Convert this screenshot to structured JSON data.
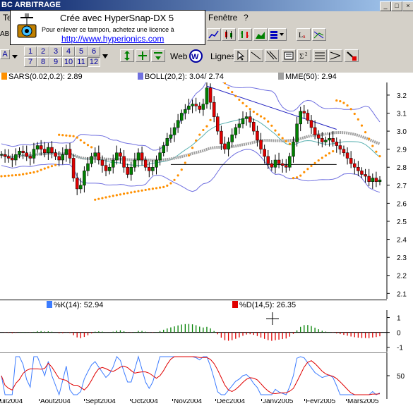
{
  "window": {
    "title": "BC ARBITRAGE",
    "controls": [
      "_",
      "□",
      "×"
    ]
  },
  "menu": {
    "items": [
      "Fenêtre",
      "?"
    ]
  },
  "stamp": {
    "line1": "Crée avec HyperSnap-DX 5",
    "line2": "Pour enlever ce tampon, achetez une licence à",
    "line3": "http://www.hyperionics.com"
  },
  "toolbar": {
    "left_field": "ABC",
    "left_field2": "Te",
    "a_button": "A",
    "number_buttons": [
      "1",
      "2",
      "3",
      "4",
      "5",
      "6",
      "7",
      "8",
      "9",
      "10",
      "11",
      "12"
    ],
    "active_number": "12",
    "web_label": "Web",
    "lignes_label": "Lignes"
  },
  "legends": {
    "sars": "SARS(0.02,0.2):  2.89",
    "boll": "BOLL(20,2):  3.04/  2.74",
    "mme": "MME(50):  2.94",
    "k": "%K(14):  52.94",
    "d": "%D(14,5):  26.35"
  },
  "colors": {
    "sars": "#ff9000",
    "boll": "#7070e0",
    "mme": "#a0a0a0",
    "k": "#3c7cff",
    "d": "#e00000",
    "up": "#008000",
    "down": "#e00000"
  },
  "chart_data": [
    {
      "type": "candlestick",
      "ylim": [
        2.07,
        3.27
      ],
      "yticks": [
        "3.2",
        "3.1",
        "3.0",
        "2.9",
        "2.8",
        "2.7",
        "2.6",
        "2.5",
        "2.4",
        "2.3",
        "2.2",
        "2.1"
      ],
      "xticks": [
        "uil2004",
        "Aout2004",
        "Sept2004",
        "Oct2004",
        "Nov2004",
        "Dec2004",
        "Janv2005",
        "Fevr2005",
        "Mars2005"
      ],
      "close": [
        2.87,
        2.86,
        2.85,
        2.84,
        2.87,
        2.89,
        2.88,
        2.86,
        2.85,
        2.9,
        2.92,
        2.9,
        2.88,
        2.91,
        2.88,
        2.86,
        2.84,
        2.87,
        2.9,
        2.85,
        2.74,
        2.68,
        2.7,
        2.78,
        2.82,
        2.86,
        2.88,
        2.84,
        2.81,
        2.78,
        2.8,
        2.84,
        2.88,
        2.86,
        2.8,
        2.76,
        2.8,
        2.84,
        2.88,
        2.84,
        2.8,
        2.78,
        2.8,
        2.84,
        2.88,
        2.92,
        2.96,
        2.98,
        3.02,
        3.06,
        3.1,
        3.12,
        3.14,
        3.15,
        3.14,
        3.12,
        3.15,
        3.24,
        3.16,
        3.08,
        3.0,
        2.93,
        2.9,
        2.94,
        2.98,
        3.02,
        3.04,
        3.07,
        3.08,
        3.05,
        3.0,
        2.95,
        2.9,
        2.86,
        2.82,
        2.8,
        2.84,
        2.82,
        2.81,
        2.8,
        2.86,
        2.94,
        3.04,
        3.11,
        3.1,
        3.06,
        3.02,
        2.98,
        2.96,
        2.94,
        2.95,
        2.96,
        2.94,
        2.92,
        2.9,
        2.88,
        2.85,
        2.82,
        2.8,
        2.78,
        2.76,
        2.75,
        2.72,
        2.74,
        2.72,
        2.73
      ]
    },
    {
      "type": "histogram",
      "ylim": [
        -1.3,
        1.5
      ],
      "yticks": [
        "1",
        "0",
        "-1"
      ]
    },
    {
      "type": "line",
      "series": [
        {
          "name": "%K(14)"
        },
        {
          "name": "%D(14,5)"
        }
      ],
      "yticks": [
        "50"
      ]
    }
  ]
}
